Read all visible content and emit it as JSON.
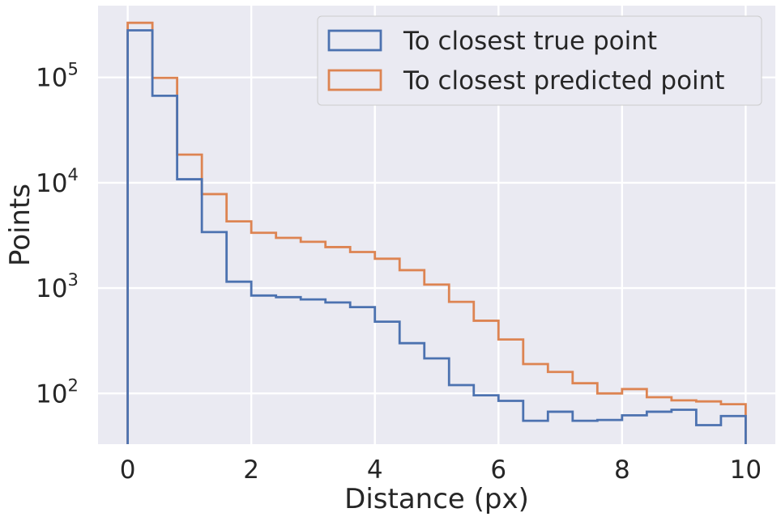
{
  "chart_data": {
    "type": "histogram",
    "xlabel": "Distance (px)",
    "ylabel": "Points",
    "xlim": [
      -0.48,
      10.48
    ],
    "ylim": [
      33,
      480000
    ],
    "yscale": "log",
    "grid": true,
    "legend_position": "top-right",
    "x_ticks": [
      {
        "value": 0,
        "label": "0"
      },
      {
        "value": 2,
        "label": "2"
      },
      {
        "value": 4,
        "label": "4"
      },
      {
        "value": 6,
        "label": "6"
      },
      {
        "value": 8,
        "label": "8"
      },
      {
        "value": 10,
        "label": "10"
      }
    ],
    "y_ticks": [
      {
        "value": 100,
        "base": "10",
        "exp": "2"
      },
      {
        "value": 1000,
        "base": "10",
        "exp": "3"
      },
      {
        "value": 10000,
        "base": "10",
        "exp": "4"
      },
      {
        "value": 100000,
        "base": "10",
        "exp": "5"
      }
    ],
    "bin_edges": [
      0,
      0.4,
      0.8,
      1.2,
      1.6,
      2.0,
      2.4,
      2.8,
      3.2,
      3.6,
      4.0,
      4.4,
      4.8,
      5.2,
      5.6,
      6.0,
      6.4,
      6.8,
      7.2,
      7.6,
      8.0,
      8.4,
      8.8,
      9.2,
      9.6,
      10.0
    ],
    "series": [
      {
        "name": "To closest true point",
        "color": "#4c72b0",
        "values": [
          280000,
          67000,
          10800,
          3400,
          1150,
          850,
          820,
          780,
          730,
          660,
          480,
          300,
          215,
          120,
          96,
          85,
          55,
          67,
          55,
          56,
          62,
          67,
          70,
          50,
          61
        ]
      },
      {
        "name": "To closest predicted point",
        "color": "#dd8452",
        "values": [
          330000,
          99000,
          18500,
          7800,
          4300,
          3350,
          3000,
          2750,
          2450,
          2200,
          1900,
          1480,
          1080,
          740,
          490,
          325,
          190,
          160,
          125,
          100,
          110,
          92,
          86,
          84,
          79
        ]
      }
    ]
  }
}
